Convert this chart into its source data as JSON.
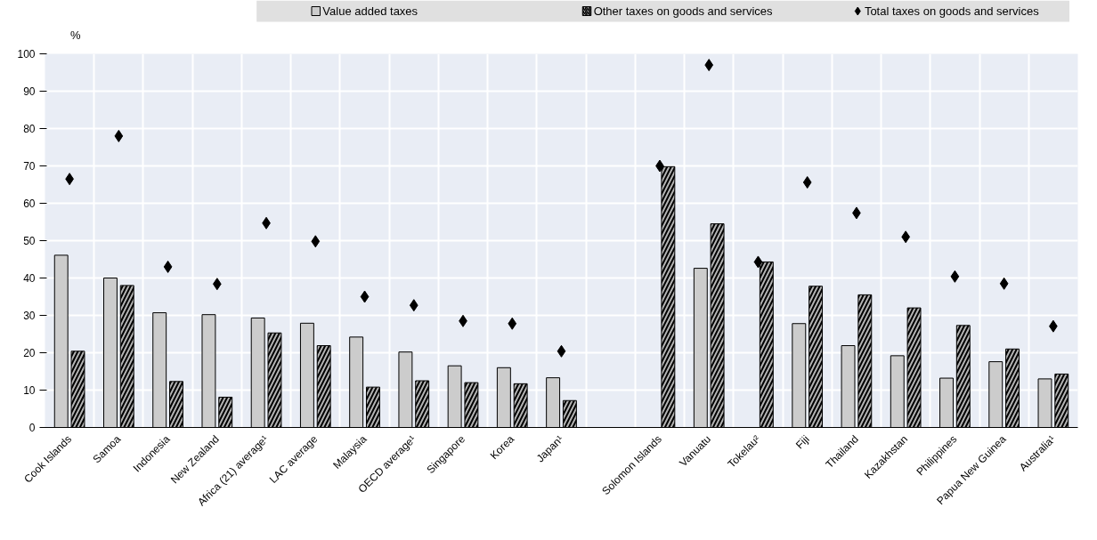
{
  "chart_data": {
    "type": "bar",
    "ylabel": "%",
    "categories": [
      "Cook Islands",
      "Samoa",
      "Indonesia",
      "New Zealand",
      "Africa (21) average¹",
      "LAC average",
      "Malaysia",
      "OECD average¹",
      "Singapore",
      "Korea",
      "Japan¹",
      null,
      "Solomon Islands",
      "Vanuatu",
      "Tokelau²",
      "Fiji",
      "Thailand",
      "Kazakhstan",
      "Philippines",
      "Papua New Guinea",
      "Australia¹"
    ],
    "series": [
      {
        "name": "Value added taxes",
        "color": "#cccccc",
        "values": [
          46.1,
          40,
          30.7,
          30.2,
          29.3,
          27.9,
          24.2,
          20.2,
          16.5,
          16,
          13.3,
          null,
          null,
          42.6,
          null,
          27.8,
          21.9,
          19.2,
          13.2,
          17.6,
          13
        ]
      },
      {
        "name": "Other taxes on goods and services",
        "color": "#b3b3b3",
        "values": [
          20.4,
          38,
          12.3,
          8.1,
          25.3,
          21.9,
          10.8,
          12.5,
          12,
          11.7,
          7.2,
          null,
          69.8,
          54.5,
          44.3,
          37.8,
          35.5,
          32,
          27.3,
          21,
          14.3
        ]
      },
      {
        "name": "Total taxes on goods and services",
        "type": "scatter",
        "color": "#000000",
        "values": [
          66.5,
          78,
          43,
          38.4,
          54.7,
          49.8,
          35,
          32.7,
          28.5,
          27.8,
          20.4,
          null,
          70,
          97,
          44.3,
          65.6,
          57.4,
          51,
          40.4,
          38.5,
          27.1
        ]
      }
    ],
    "ylim": [
      0,
      100
    ],
    "yticks": [
      0,
      10,
      20,
      30,
      40,
      50,
      60,
      70,
      80,
      90,
      100
    ],
    "grid": true,
    "legend": "top",
    "marker": "diamond"
  }
}
